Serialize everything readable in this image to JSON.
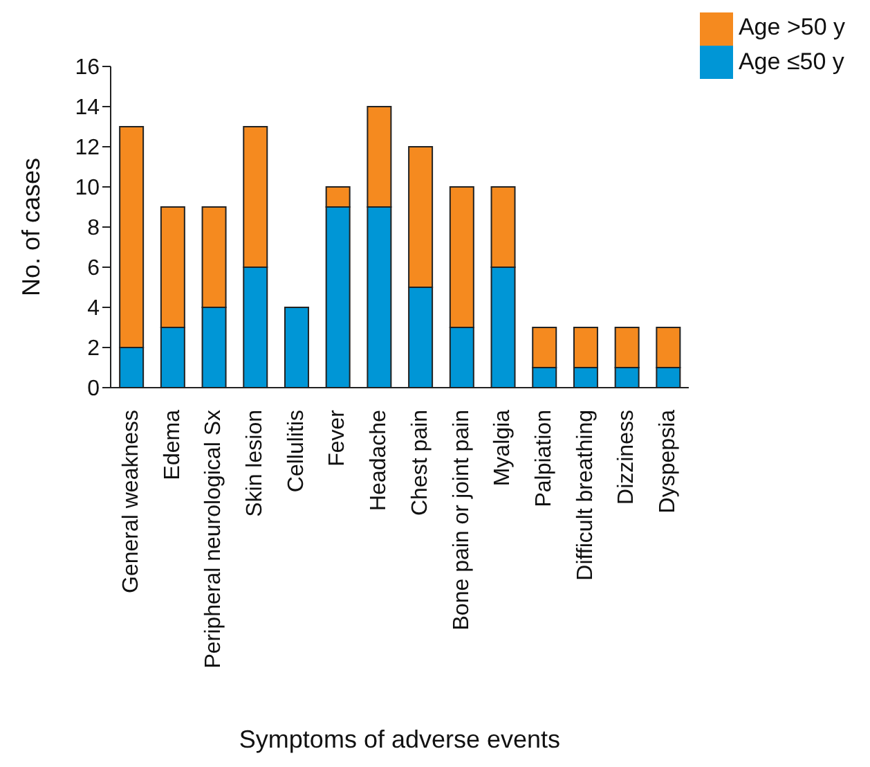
{
  "chart_data": {
    "type": "bar",
    "stacked": true,
    "xlabel": "Symptoms of adverse events",
    "ylabel": "No. of cases",
    "categories": [
      "General weakness",
      "Edema",
      "Peripheral neurological Sx",
      "Skin lesion",
      "Cellulitis",
      "Fever",
      "Headache",
      "Chest pain",
      "Bone pain or joint pain",
      "Myalgia",
      "Palpiation",
      "Difficult breathing",
      "Dizziness",
      "Dyspepsia"
    ],
    "series": [
      {
        "name": "Age ≤50 y",
        "color": "#0096d6",
        "values": [
          2,
          3,
          4,
          6,
          4,
          9,
          9,
          5,
          3,
          6,
          1,
          1,
          1,
          1
        ]
      },
      {
        "name": "Age >50 y",
        "color": "#f58a1f",
        "values": [
          11,
          6,
          5,
          7,
          0,
          1,
          5,
          7,
          7,
          4,
          2,
          2,
          2,
          2
        ]
      }
    ],
    "ylim": [
      0,
      16
    ],
    "yticks": [
      0,
      2,
      4,
      6,
      8,
      10,
      12,
      14,
      16
    ],
    "grid": false,
    "legend": "top right"
  }
}
